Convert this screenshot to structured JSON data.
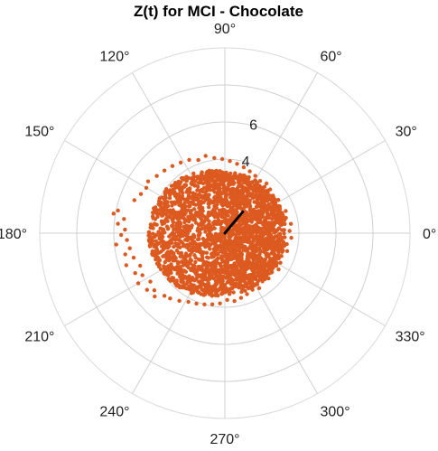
{
  "chart_data": {
    "type": "scatter",
    "polar": true,
    "title": "Z(t) for MCI - Chocolate",
    "angle_ticks": [
      {
        "deg": 0,
        "label": "0°"
      },
      {
        "deg": 30,
        "label": "30°"
      },
      {
        "deg": 60,
        "label": "60°"
      },
      {
        "deg": 90,
        "label": "90°"
      },
      {
        "deg": 120,
        "label": "120°"
      },
      {
        "deg": 150,
        "label": "150°"
      },
      {
        "deg": 180,
        "label": "180°"
      },
      {
        "deg": 210,
        "label": "210°"
      },
      {
        "deg": 240,
        "label": "240°"
      },
      {
        "deg": 270,
        "label": "270°"
      },
      {
        "deg": 300,
        "label": "300°"
      },
      {
        "deg": 330,
        "label": "330°"
      }
    ],
    "radial_ticks": [
      {
        "value": 4,
        "label": "4"
      },
      {
        "value": 6,
        "label": "6"
      }
    ],
    "rlim": [
      0,
      10
    ],
    "grid": true,
    "point_color": "#dc5a20",
    "mean_vector": {
      "angle_deg": 50,
      "length": 1.5,
      "color": "#000000"
    },
    "points": [
      {
        "theta": 168,
        "r": 5.9
      },
      {
        "theta": 170,
        "r": 6.1
      },
      {
        "theta": 172,
        "r": 5.5
      },
      {
        "theta": 175,
        "r": 5.8
      },
      {
        "theta": 178,
        "r": 5.4
      },
      {
        "theta": 181,
        "r": 5.6
      },
      {
        "theta": 184,
        "r": 5.3
      },
      {
        "theta": 186,
        "r": 5.9
      },
      {
        "theta": 189,
        "r": 5.2
      },
      {
        "theta": 192,
        "r": 5.5
      },
      {
        "theta": 195,
        "r": 5.1
      },
      {
        "theta": 198,
        "r": 5.6
      },
      {
        "theta": 201,
        "r": 4.9
      },
      {
        "theta": 204,
        "r": 5.3
      },
      {
        "theta": 207,
        "r": 5.0
      },
      {
        "theta": 210,
        "r": 5.4
      },
      {
        "theta": 213,
        "r": 4.8
      },
      {
        "theta": 216,
        "r": 5.2
      },
      {
        "theta": 219,
        "r": 4.9
      },
      {
        "theta": 222,
        "r": 5.1
      },
      {
        "theta": 226,
        "r": 4.7
      },
      {
        "theta": 230,
        "r": 4.6
      },
      {
        "theta": 236,
        "r": 4.4
      },
      {
        "theta": 242,
        "r": 4.2
      },
      {
        "theta": 160,
        "r": 5.2
      },
      {
        "theta": 155,
        "r": 5.0
      },
      {
        "theta": 150,
        "r": 4.9
      },
      {
        "theta": 146,
        "r": 5.0
      },
      {
        "theta": 140,
        "r": 4.8
      },
      {
        "theta": 134,
        "r": 4.7
      },
      {
        "theta": 128,
        "r": 4.6
      },
      {
        "theta": 122,
        "r": 4.5
      },
      {
        "theta": 116,
        "r": 4.4
      },
      {
        "theta": 110,
        "r": 4.2
      },
      {
        "theta": 104,
        "r": 4.3
      },
      {
        "theta": 98,
        "r": 4.1
      },
      {
        "theta": 92,
        "r": 4.0
      },
      {
        "theta": 86,
        "r": 3.9
      },
      {
        "theta": 80,
        "r": 3.8
      },
      {
        "theta": 74,
        "r": 3.7
      },
      {
        "theta": 68,
        "r": 3.6
      },
      {
        "theta": 62,
        "r": 3.5
      },
      {
        "theta": 56,
        "r": 3.4
      },
      {
        "theta": 50,
        "r": 3.5
      },
      {
        "theta": 44,
        "r": 3.4
      },
      {
        "theta": 38,
        "r": 3.3
      },
      {
        "theta": 32,
        "r": 3.4
      },
      {
        "theta": 26,
        "r": 3.3
      },
      {
        "theta": 20,
        "r": 3.5
      },
      {
        "theta": 14,
        "r": 3.4
      },
      {
        "theta": 8,
        "r": 3.6
      },
      {
        "theta": 2,
        "r": 3.5
      },
      {
        "theta": 356,
        "r": 3.6
      },
      {
        "theta": 350,
        "r": 3.4
      },
      {
        "theta": 344,
        "r": 3.5
      },
      {
        "theta": 338,
        "r": 3.3
      },
      {
        "theta": 332,
        "r": 3.4
      },
      {
        "theta": 326,
        "r": 3.5
      },
      {
        "theta": 320,
        "r": 3.3
      },
      {
        "theta": 314,
        "r": 3.4
      },
      {
        "theta": 308,
        "r": 3.3
      },
      {
        "theta": 302,
        "r": 3.5
      },
      {
        "theta": 296,
        "r": 3.4
      },
      {
        "theta": 290,
        "r": 3.5
      },
      {
        "theta": 284,
        "r": 3.6
      },
      {
        "theta": 278,
        "r": 3.7
      },
      {
        "theta": 272,
        "r": 3.6
      },
      {
        "theta": 266,
        "r": 3.8
      },
      {
        "theta": 260,
        "r": 3.9
      },
      {
        "theta": 254,
        "r": 4.0
      },
      {
        "theta": 248,
        "r": 4.1
      }
    ]
  }
}
